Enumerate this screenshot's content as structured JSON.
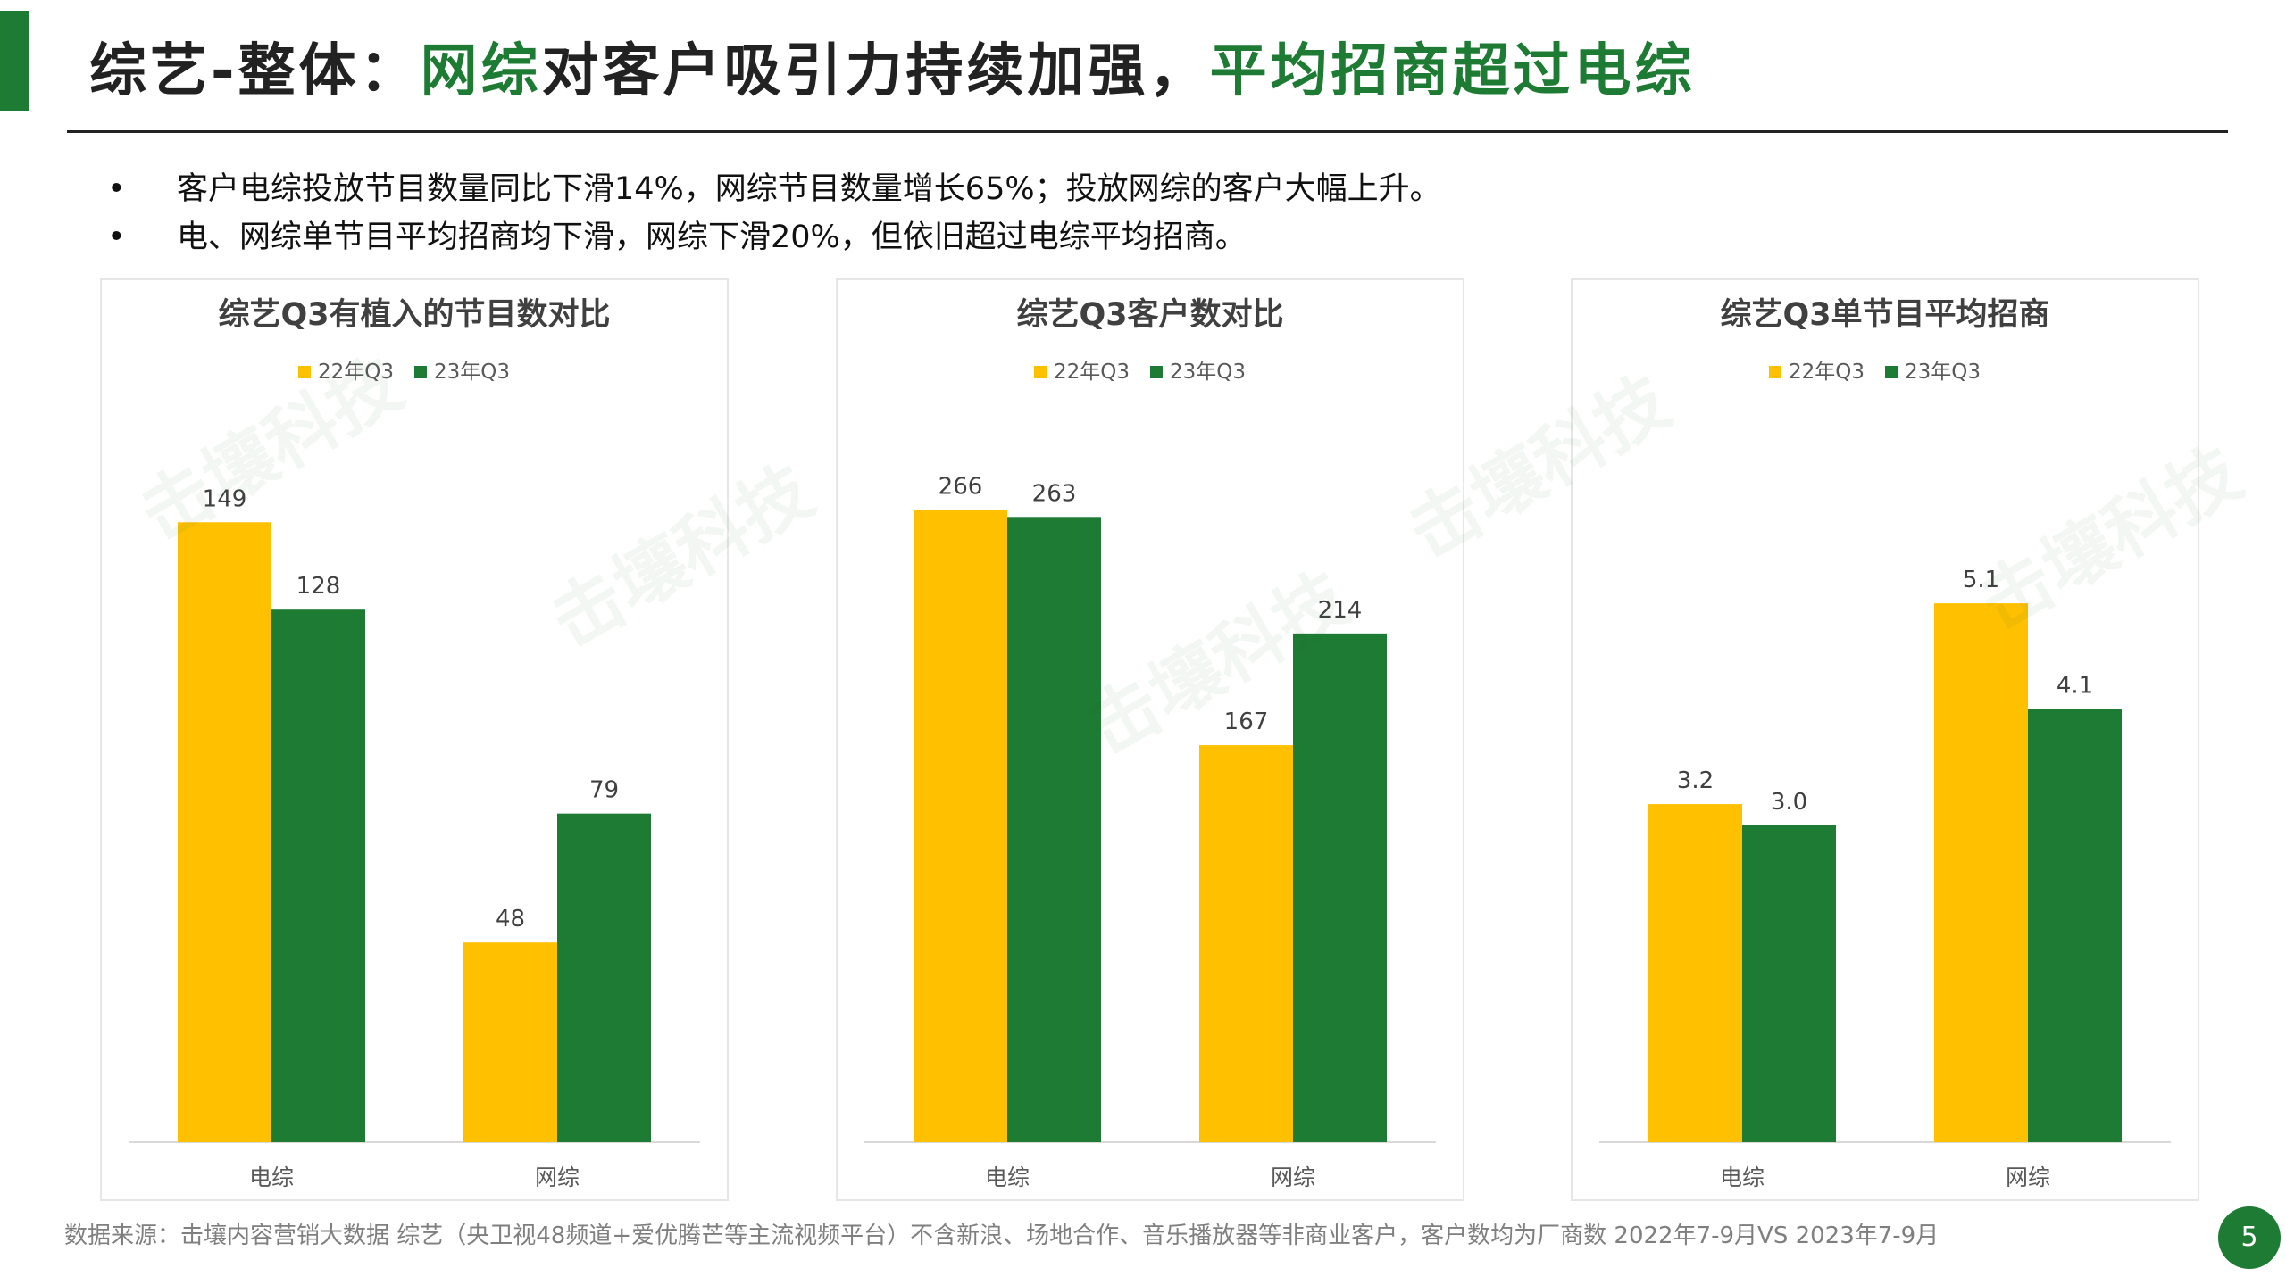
{
  "header": {
    "title_part1": "综艺-整体：",
    "title_part2": "网综",
    "title_part3": "对客户吸引力持续加强，",
    "title_part4": "平均招商超过电综"
  },
  "bullets": [
    "客户电综投放节目数量同比下滑14%，网综节目数量增长65%；投放网综的客户大幅上升。",
    "电、网综单节目平均招商均下滑，网综下滑20%，但依旧超过电综平均招商。"
  ],
  "bullet_symbol": "•",
  "colors": {
    "series_22": "#ffc000",
    "series_23": "#1e7b33",
    "accent": "#1e7b33"
  },
  "chart_data": [
    {
      "type": "bar",
      "title": "综艺Q3有植入的节目数对比",
      "categories": [
        "电综",
        "网综"
      ],
      "series": [
        {
          "name": "22年Q3",
          "values": [
            149,
            48
          ]
        },
        {
          "name": "23年Q3",
          "values": [
            128,
            79
          ]
        }
      ],
      "value_labels": [
        [
          "149",
          "48"
        ],
        [
          "128",
          "79"
        ]
      ],
      "ylim": [
        0,
        160
      ],
      "legend": "top"
    },
    {
      "type": "bar",
      "title": "综艺Q3客户数对比",
      "categories": [
        "电综",
        "网综"
      ],
      "series": [
        {
          "name": "22年Q3",
          "values": [
            266,
            167
          ]
        },
        {
          "name": "23年Q3",
          "values": [
            263,
            214
          ]
        }
      ],
      "value_labels": [
        [
          "266",
          "167"
        ],
        [
          "263",
          "214"
        ]
      ],
      "ylim": [
        0,
        280
      ],
      "legend": "top"
    },
    {
      "type": "bar",
      "title": "综艺Q3单节目平均招商",
      "categories": [
        "电综",
        "网综"
      ],
      "series": [
        {
          "name": "22年Q3",
          "values": [
            3.2,
            5.1
          ]
        },
        {
          "name": "23年Q3",
          "values": [
            3.0,
            4.1
          ]
        }
      ],
      "value_labels": [
        [
          "3.2",
          "5.1"
        ],
        [
          "3.0",
          "4.1"
        ]
      ],
      "ylim": [
        0,
        6.3
      ],
      "legend": "top"
    }
  ],
  "footer": {
    "source": "数据来源：击壤内容营销大数据    综艺（央卫视48频道+爱优腾芒等主流视频平台）不含新浪、场地合作、音乐播放器等非商业客户，客户数均为厂商数 2022年7-9月VS 2023年7-9月"
  },
  "page_number": "5",
  "watermark_text": "击壤科技"
}
